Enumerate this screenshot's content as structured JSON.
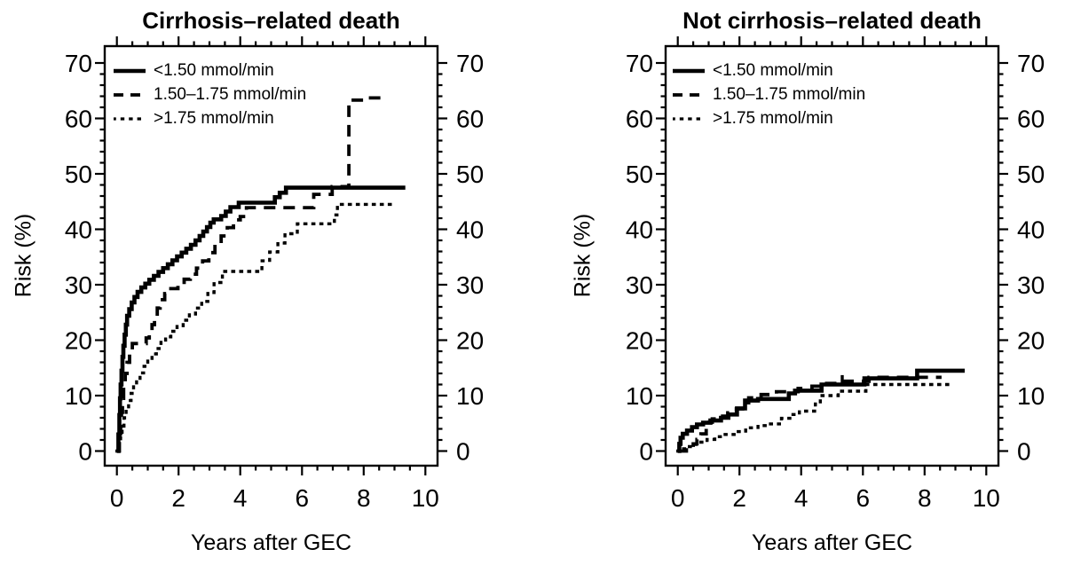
{
  "figure": {
    "background_color": "#ffffff",
    "ink_color": "#000000"
  },
  "chart_data": [
    {
      "type": "line",
      "subtype": "step-function-cumulative-risk",
      "title": "Cirrhosis–related death",
      "xlabel": "Years after GEC",
      "ylabel": "Risk (%)",
      "xlim": [
        0,
        10
      ],
      "ylim": [
        0,
        70
      ],
      "x_major_ticks": [
        0,
        2,
        4,
        6,
        8,
        10
      ],
      "x_minor_step": 0.5,
      "y_major_ticks": [
        0,
        10,
        20,
        30,
        40,
        50,
        60,
        70
      ],
      "y_minor_step": 2,
      "x_axis_mirrored_on_top": true,
      "y_axis_mirrored_on_right": true,
      "grid": false,
      "legend_position": "top-left-inside",
      "series": [
        {
          "name": "<1.50 mmol/min",
          "line_style": "solid",
          "points": [
            [
              0,
              0
            ],
            [
              0.05,
              3
            ],
            [
              0.08,
              6.5
            ],
            [
              0.1,
              9.5
            ],
            [
              0.12,
              12
            ],
            [
              0.15,
              14.5
            ],
            [
              0.18,
              17
            ],
            [
              0.21,
              19
            ],
            [
              0.25,
              21
            ],
            [
              0.29,
              22.8
            ],
            [
              0.33,
              24.4
            ],
            [
              0.4,
              25.6
            ],
            [
              0.48,
              26.8
            ],
            [
              0.57,
              27.8
            ],
            [
              0.67,
              28.7
            ],
            [
              0.79,
              29.5
            ],
            [
              0.92,
              30.2
            ],
            [
              1.05,
              30.9
            ],
            [
              1.2,
              31.6
            ],
            [
              1.35,
              32.3
            ],
            [
              1.5,
              33
            ],
            [
              1.65,
              33.7
            ],
            [
              1.8,
              34.4
            ],
            [
              1.95,
              35.1
            ],
            [
              2.1,
              35.8
            ],
            [
              2.25,
              36.5
            ],
            [
              2.4,
              37.2
            ],
            [
              2.55,
              38
            ],
            [
              2.68,
              38.8
            ],
            [
              2.8,
              39.6
            ],
            [
              2.92,
              40.4
            ],
            [
              3.03,
              41.2
            ],
            [
              3.14,
              41.8
            ],
            [
              3.38,
              42.4
            ],
            [
              3.53,
              43.2
            ],
            [
              3.68,
              44
            ],
            [
              3.95,
              44.8
            ],
            [
              5.12,
              45.8
            ],
            [
              5.28,
              46.6
            ],
            [
              5.48,
              47.5
            ],
            [
              9.35,
              47.5
            ]
          ]
        },
        {
          "name": "1.50–1.75 mmol/min",
          "line_style": "dashed",
          "points": [
            [
              0,
              0
            ],
            [
              0.08,
              2.2
            ],
            [
              0.12,
              4.5
            ],
            [
              0.15,
              7
            ],
            [
              0.18,
              9.5
            ],
            [
              0.22,
              12
            ],
            [
              0.27,
              14
            ],
            [
              0.33,
              16
            ],
            [
              0.41,
              18
            ],
            [
              0.5,
              19.4
            ],
            [
              0.95,
              20.4
            ],
            [
              1.05,
              21.4
            ],
            [
              1.14,
              22.8
            ],
            [
              1.22,
              24.3
            ],
            [
              1.31,
              25.8
            ],
            [
              1.4,
              27.3
            ],
            [
              1.55,
              28.4
            ],
            [
              1.75,
              29.3
            ],
            [
              1.98,
              30.1
            ],
            [
              2.18,
              31
            ],
            [
              2.38,
              31.9
            ],
            [
              2.58,
              33
            ],
            [
              2.78,
              34.3
            ],
            [
              2.98,
              35.8
            ],
            [
              3.18,
              37.3
            ],
            [
              3.38,
              38.8
            ],
            [
              3.58,
              40.3
            ],
            [
              3.78,
              41.7
            ],
            [
              4.0,
              42.3
            ],
            [
              4.2,
              43.9
            ],
            [
              6.38,
              46.3
            ],
            [
              6.98,
              47.7
            ],
            [
              7.52,
              63.3
            ],
            [
              8.15,
              63.7
            ],
            [
              8.6,
              63.7
            ]
          ]
        },
        {
          "name": ">1.75 mmol/min",
          "line_style": "dotted",
          "points": [
            [
              0,
              0
            ],
            [
              0.07,
              1.5
            ],
            [
              0.12,
              3
            ],
            [
              0.17,
              4.5
            ],
            [
              0.23,
              6
            ],
            [
              0.3,
              7.2
            ],
            [
              0.38,
              9.1
            ],
            [
              0.46,
              10.4
            ],
            [
              0.54,
              11.6
            ],
            [
              0.64,
              12.9
            ],
            [
              0.75,
              14.1
            ],
            [
              0.88,
              15.3
            ],
            [
              1.0,
              16.4
            ],
            [
              1.14,
              17.5
            ],
            [
              1.28,
              18.5
            ],
            [
              1.43,
              19.6
            ],
            [
              1.58,
              20.6
            ],
            [
              1.75,
              21.6
            ],
            [
              1.95,
              22.6
            ],
            [
              2.15,
              23.6
            ],
            [
              2.35,
              24.6
            ],
            [
              2.55,
              25.8
            ],
            [
              2.75,
              27
            ],
            [
              2.95,
              28.6
            ],
            [
              3.15,
              30.4
            ],
            [
              3.42,
              32.4
            ],
            [
              4.7,
              34.3
            ],
            [
              4.95,
              35.9
            ],
            [
              5.22,
              37.5
            ],
            [
              5.45,
              39.2
            ],
            [
              5.85,
              41
            ],
            [
              7.05,
              42.6
            ],
            [
              7.15,
              44.5
            ],
            [
              9.05,
              44.5
            ]
          ]
        }
      ],
      "censor_marks": []
    },
    {
      "type": "line",
      "subtype": "step-function-cumulative-risk",
      "title": "Not cirrhosis–related death",
      "xlabel": "Years after GEC",
      "ylabel": "Risk (%)",
      "xlim": [
        0,
        10
      ],
      "ylim": [
        0,
        70
      ],
      "x_major_ticks": [
        0,
        2,
        4,
        6,
        8,
        10
      ],
      "x_minor_step": 0.5,
      "y_major_ticks": [
        0,
        10,
        20,
        30,
        40,
        50,
        60,
        70
      ],
      "y_minor_step": 2,
      "x_axis_mirrored_on_top": true,
      "y_axis_mirrored_on_right": true,
      "grid": false,
      "legend_position": "top-left-inside",
      "series": [
        {
          "name": "<1.50 mmol/min",
          "line_style": "solid",
          "points": [
            [
              0,
              0
            ],
            [
              0.05,
              1.3
            ],
            [
              0.09,
              2.4
            ],
            [
              0.16,
              3.1
            ],
            [
              0.3,
              3.7
            ],
            [
              0.46,
              4.3
            ],
            [
              0.62,
              4.8
            ],
            [
              0.82,
              5.1
            ],
            [
              1.06,
              5.5
            ],
            [
              1.4,
              6
            ],
            [
              1.64,
              6.6
            ],
            [
              1.92,
              7.7
            ],
            [
              2.18,
              9.1
            ],
            [
              2.6,
              9.4
            ],
            [
              3.6,
              10.4
            ],
            [
              3.8,
              10.9
            ],
            [
              4.66,
              12
            ],
            [
              6.05,
              13.1
            ],
            [
              7.76,
              14.5
            ],
            [
              9.3,
              14.5
            ]
          ]
        },
        {
          "name": "1.50–1.75 mmol/min",
          "line_style": "dashed",
          "points": [
            [
              0,
              0
            ],
            [
              0.28,
              0.7
            ],
            [
              0.5,
              1.3
            ],
            [
              0.62,
              2.1
            ],
            [
              0.75,
              3.1
            ],
            [
              0.92,
              5.2
            ],
            [
              1.12,
              5.8
            ],
            [
              1.32,
              6.3
            ],
            [
              1.62,
              6.9
            ],
            [
              1.9,
              7.6
            ],
            [
              2.1,
              8.7
            ],
            [
              2.3,
              9.6
            ],
            [
              2.7,
              10.2
            ],
            [
              3.2,
              10.7
            ],
            [
              3.9,
              11.3
            ],
            [
              4.35,
              11.7
            ],
            [
              4.7,
              12.2
            ],
            [
              5.3,
              12.6
            ],
            [
              6.2,
              13.3
            ],
            [
              8.55,
              13.3
            ]
          ]
        },
        {
          "name": ">1.75 mmol/min",
          "line_style": "dotted",
          "points": [
            [
              0,
              0
            ],
            [
              0.15,
              0.4
            ],
            [
              0.32,
              0.8
            ],
            [
              0.52,
              1.2
            ],
            [
              0.72,
              1.6
            ],
            [
              0.95,
              2.1
            ],
            [
              1.2,
              2.6
            ],
            [
              1.5,
              3
            ],
            [
              1.85,
              3.5
            ],
            [
              2.2,
              4.2
            ],
            [
              2.6,
              4.6
            ],
            [
              2.9,
              4.9
            ],
            [
              3.36,
              5.9
            ],
            [
              3.7,
              6.6
            ],
            [
              3.94,
              7.2
            ],
            [
              4.46,
              8.5
            ],
            [
              4.62,
              10
            ],
            [
              5.2,
              10.8
            ],
            [
              6.1,
              12
            ],
            [
              8.9,
              12
            ]
          ]
        }
      ],
      "censor_marks": [
        [
          5.33,
          12.1
        ]
      ]
    }
  ]
}
